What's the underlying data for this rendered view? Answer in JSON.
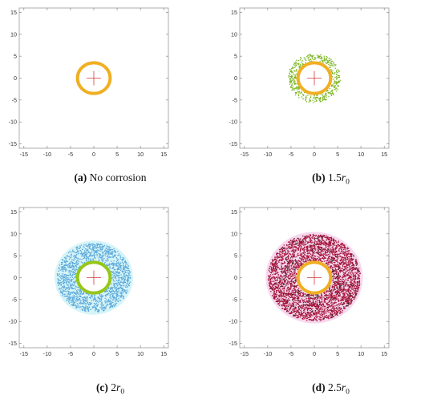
{
  "chart_data": [
    {
      "type": "scatter",
      "caption_letter": "(a)",
      "caption_text": "No corrosion",
      "caption_symbol": "",
      "caption_sub": "",
      "xlim": [
        -16,
        16
      ],
      "ylim": [
        -16,
        16
      ],
      "xticks": [
        -15,
        -10,
        -5,
        0,
        5,
        10,
        15
      ],
      "yticks": [
        -15,
        -10,
        -5,
        0,
        5,
        10,
        15
      ],
      "rebar_radius": 3.5,
      "rebar_color": "#F0AF22",
      "marker_color": "#D63A3A",
      "corrosion_zone": null
    },
    {
      "type": "scatter",
      "caption_letter": "(b)",
      "caption_text": "1.5",
      "caption_symbol": "r",
      "caption_sub": "0",
      "xlim": [
        -16,
        16
      ],
      "ylim": [
        -16,
        16
      ],
      "xticks": [
        -15,
        -10,
        -5,
        0,
        5,
        10,
        15
      ],
      "yticks": [
        -15,
        -10,
        -5,
        0,
        5,
        10,
        15
      ],
      "rebar_radius": 3.5,
      "rebar_color": "#F0AF22",
      "marker_color": "#D63A3A",
      "corrosion_zone": {
        "inner": 3.9,
        "outer": 5.6,
        "halo_color": "",
        "particle_color": "#7AB520",
        "particle_count": 420
      }
    },
    {
      "type": "scatter",
      "caption_letter": "(c)",
      "caption_text": "2",
      "caption_symbol": "r",
      "caption_sub": "0",
      "xlim": [
        -16,
        16
      ],
      "ylim": [
        -16,
        16
      ],
      "xticks": [
        -15,
        -10,
        -5,
        0,
        5,
        10,
        15
      ],
      "yticks": [
        -15,
        -10,
        -5,
        0,
        5,
        10,
        15
      ],
      "rebar_radius": 3.5,
      "rebar_color": "#97C619",
      "marker_color": "#D63A3A",
      "corrosion_zone": {
        "inner": 3.9,
        "outer": 7.9,
        "halo_color": "#D6F4F7",
        "particle_color": "#5BA8DA",
        "particle_count": 1500
      }
    },
    {
      "type": "scatter",
      "caption_letter": "(d)",
      "caption_text": "2.5",
      "caption_symbol": "r",
      "caption_sub": "0",
      "xlim": [
        -16,
        16
      ],
      "ylim": [
        -16,
        16
      ],
      "xticks": [
        -15,
        -10,
        -5,
        0,
        5,
        10,
        15
      ],
      "yticks": [
        -15,
        -10,
        -5,
        0,
        5,
        10,
        15
      ],
      "rebar_radius": 3.5,
      "rebar_color": "#F0AF22",
      "marker_color": "#D63A3A",
      "corrosion_zone": {
        "inner": 3.9,
        "outer": 9.9,
        "halo_color": "#F6D8EE",
        "particle_color": "#A5143A",
        "particle_count": 3200
      }
    }
  ]
}
